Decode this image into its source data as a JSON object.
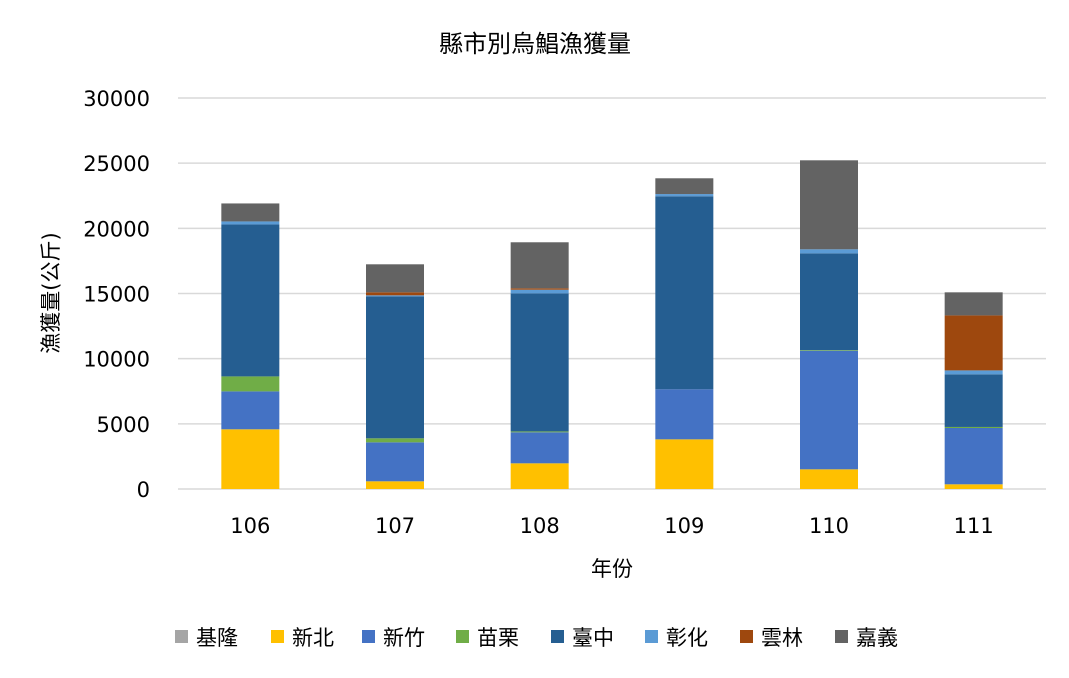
{
  "chart_data": {
    "type": "bar",
    "stacked": true,
    "title": "縣市別烏鯧漁獲量",
    "xlabel": "年份",
    "ylabel": "漁獲量(公斤)",
    "ylim": [
      0,
      30000
    ],
    "yticks": [
      0,
      5000,
      10000,
      15000,
      20000,
      25000,
      30000
    ],
    "grid": true,
    "legend_position": "bottom",
    "categories": [
      "106",
      "107",
      "108",
      "109",
      "110",
      "111"
    ],
    "series": [
      {
        "name": "基隆",
        "color": "#A5A5A5",
        "values": [
          0,
          0,
          0,
          0,
          0,
          0
        ]
      },
      {
        "name": "新北",
        "color": "#FFC000",
        "values": [
          4580,
          590,
          1970,
          3810,
          1510,
          360
        ]
      },
      {
        "name": "新竹",
        "color": "#4472C4",
        "values": [
          2910,
          2990,
          2380,
          3840,
          9100,
          4320
        ]
      },
      {
        "name": "苗栗",
        "color": "#70AD47",
        "values": [
          1150,
          310,
          70,
          0,
          50,
          80
        ]
      },
      {
        "name": "臺中",
        "color": "#255E91",
        "values": [
          11660,
          10890,
          10590,
          14810,
          7420,
          4040
        ]
      },
      {
        "name": "彰化",
        "color": "#5B9BD5",
        "values": [
          230,
          80,
          280,
          170,
          310,
          300
        ]
      },
      {
        "name": "雲林",
        "color": "#9E480E",
        "values": [
          0,
          230,
          110,
          0,
          0,
          4220
        ]
      },
      {
        "name": "嘉義",
        "color": "#636363",
        "values": [
          1380,
          2150,
          3530,
          1210,
          6830,
          1770
        ]
      }
    ]
  }
}
